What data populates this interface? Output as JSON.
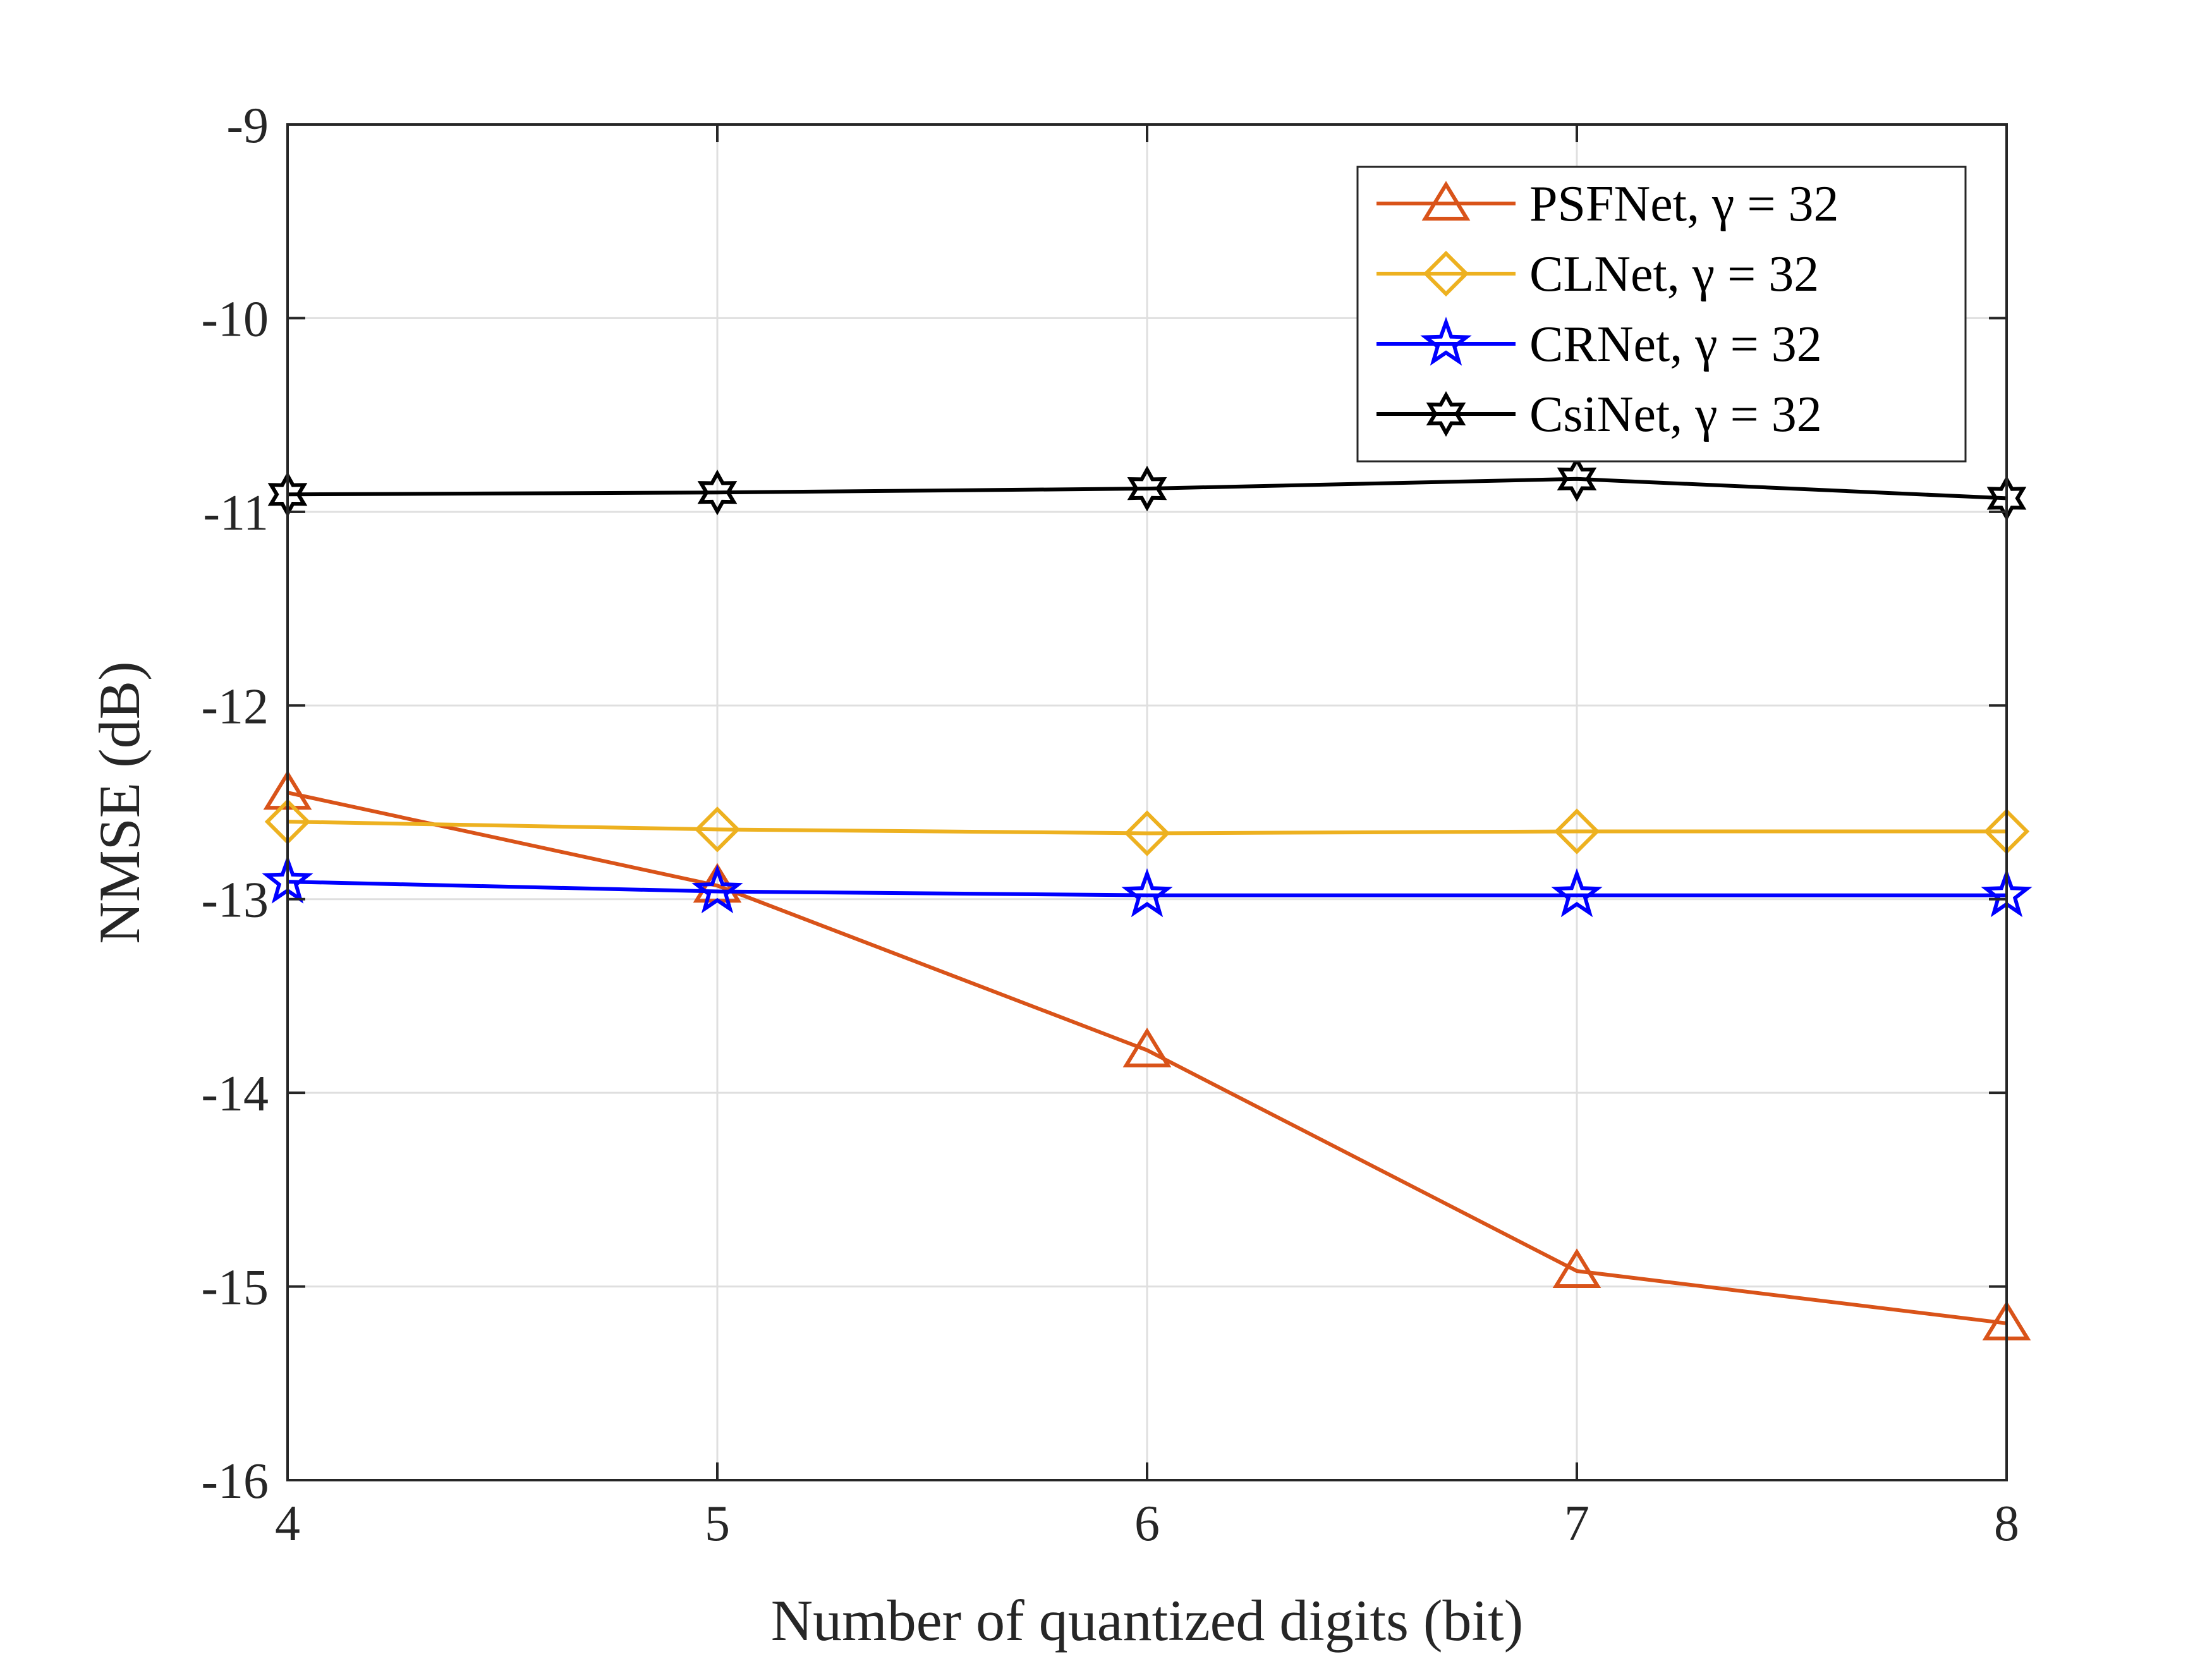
{
  "chart_data": {
    "type": "line",
    "title": "",
    "xlabel": "Number of quantized digits (bit)",
    "ylabel": "NMSE (dB)",
    "x": [
      4,
      5,
      6,
      7,
      8
    ],
    "xlim": [
      4,
      8
    ],
    "ylim": [
      -16,
      -9
    ],
    "xticks": [
      "4",
      "5",
      "6",
      "7",
      "8"
    ],
    "yticks": [
      "-9",
      "-10",
      "-11",
      "-12",
      "-13",
      "-14",
      "-15",
      "-16"
    ],
    "grid": true,
    "legend_position": "top-right",
    "series": [
      {
        "name": "PSFNet",
        "suffix": ", γ = 32",
        "color": "#D95319",
        "marker": "triangle",
        "values": [
          -12.45,
          -12.93,
          -13.78,
          -14.92,
          -15.19
        ]
      },
      {
        "name": "CLNet",
        "suffix": ", γ = 32",
        "color": "#EDB120",
        "marker": "diamond",
        "values": [
          -12.6,
          -12.64,
          -12.66,
          -12.65,
          -12.65
        ]
      },
      {
        "name": "CRNet",
        "suffix": ", γ = 32",
        "color": "#0000FF",
        "marker": "star",
        "values": [
          -12.91,
          -12.96,
          -12.98,
          -12.98,
          -12.98
        ]
      },
      {
        "name": "CsiNet",
        "suffix": ", γ = 32",
        "color": "#000000",
        "marker": "hexagram",
        "values": [
          -10.91,
          -10.9,
          -10.88,
          -10.83,
          -10.93
        ]
      }
    ]
  }
}
